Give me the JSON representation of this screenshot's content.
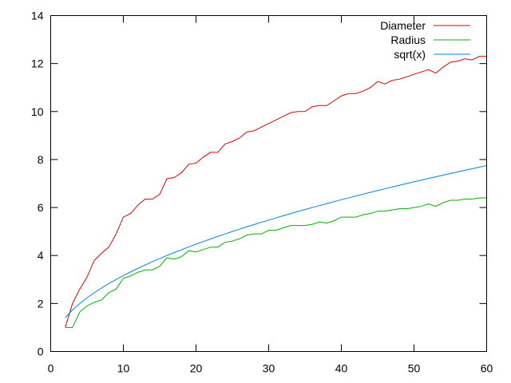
{
  "chart_data": {
    "type": "line",
    "title": "",
    "xlabel": "",
    "ylabel": "",
    "xlim": [
      0,
      60
    ],
    "ylim": [
      0,
      14
    ],
    "xticks": [
      0,
      10,
      20,
      30,
      40,
      50,
      60
    ],
    "yticks": [
      0,
      2,
      4,
      6,
      8,
      10,
      12,
      14
    ],
    "grid": false,
    "legend_position": "top-right",
    "x": [
      2,
      3,
      4,
      5,
      6,
      7,
      8,
      9,
      10,
      11,
      12,
      13,
      14,
      15,
      16,
      17,
      18,
      19,
      20,
      21,
      22,
      23,
      24,
      25,
      26,
      27,
      28,
      29,
      30,
      31,
      32,
      33,
      34,
      35,
      36,
      37,
      38,
      39,
      40,
      41,
      42,
      43,
      44,
      45,
      46,
      47,
      48,
      49,
      50,
      51,
      52,
      53,
      54,
      55,
      56,
      57,
      58,
      59,
      60
    ],
    "series": [
      {
        "name": "Diameter",
        "color": "#e00000",
        "values": [
          1.0,
          2.0,
          2.6,
          3.1,
          3.8,
          4.1,
          4.35,
          4.9,
          5.6,
          5.75,
          6.1,
          6.35,
          6.35,
          6.55,
          7.2,
          7.25,
          7.45,
          7.8,
          7.85,
          8.1,
          8.3,
          8.3,
          8.65,
          8.75,
          8.9,
          9.15,
          9.2,
          9.35,
          9.5,
          9.65,
          9.8,
          9.95,
          10.0,
          10.0,
          10.2,
          10.25,
          10.25,
          10.45,
          10.65,
          10.75,
          10.75,
          10.85,
          11.0,
          11.25,
          11.15,
          11.3,
          11.35,
          11.45,
          11.55,
          11.65,
          11.75,
          11.6,
          11.85,
          12.05,
          12.1,
          12.2,
          12.15,
          12.3,
          12.3
        ]
      },
      {
        "name": "Radius",
        "color": "#00b000",
        "values": [
          1.0,
          1.0,
          1.65,
          1.9,
          2.05,
          2.15,
          2.45,
          2.6,
          3.05,
          3.15,
          3.3,
          3.4,
          3.4,
          3.55,
          3.9,
          3.85,
          3.95,
          4.2,
          4.15,
          4.25,
          4.35,
          4.35,
          4.55,
          4.6,
          4.7,
          4.85,
          4.9,
          4.9,
          5.05,
          5.05,
          5.15,
          5.25,
          5.25,
          5.25,
          5.3,
          5.4,
          5.35,
          5.45,
          5.6,
          5.6,
          5.6,
          5.7,
          5.75,
          5.85,
          5.85,
          5.9,
          5.95,
          5.95,
          6.0,
          6.05,
          6.15,
          6.05,
          6.2,
          6.3,
          6.3,
          6.35,
          6.35,
          6.4,
          6.4
        ]
      },
      {
        "name": "sqrt(x)",
        "color": "#0080e0",
        "function": "sqrt",
        "values": [
          1.414,
          1.732,
          2.0,
          2.236,
          2.449,
          2.646,
          2.828,
          3.0,
          3.162,
          3.317,
          3.464,
          3.606,
          3.742,
          3.873,
          4.0,
          4.123,
          4.243,
          4.359,
          4.472,
          4.583,
          4.69,
          4.796,
          4.899,
          5.0,
          5.099,
          5.196,
          5.292,
          5.385,
          5.477,
          5.568,
          5.657,
          5.745,
          5.831,
          5.916,
          6.0,
          6.083,
          6.164,
          6.245,
          6.325,
          6.403,
          6.481,
          6.557,
          6.633,
          6.708,
          6.782,
          6.856,
          6.928,
          7.0,
          7.071,
          7.141,
          7.211,
          7.28,
          7.348,
          7.416,
          7.483,
          7.55,
          7.616,
          7.681,
          7.746
        ]
      }
    ]
  }
}
